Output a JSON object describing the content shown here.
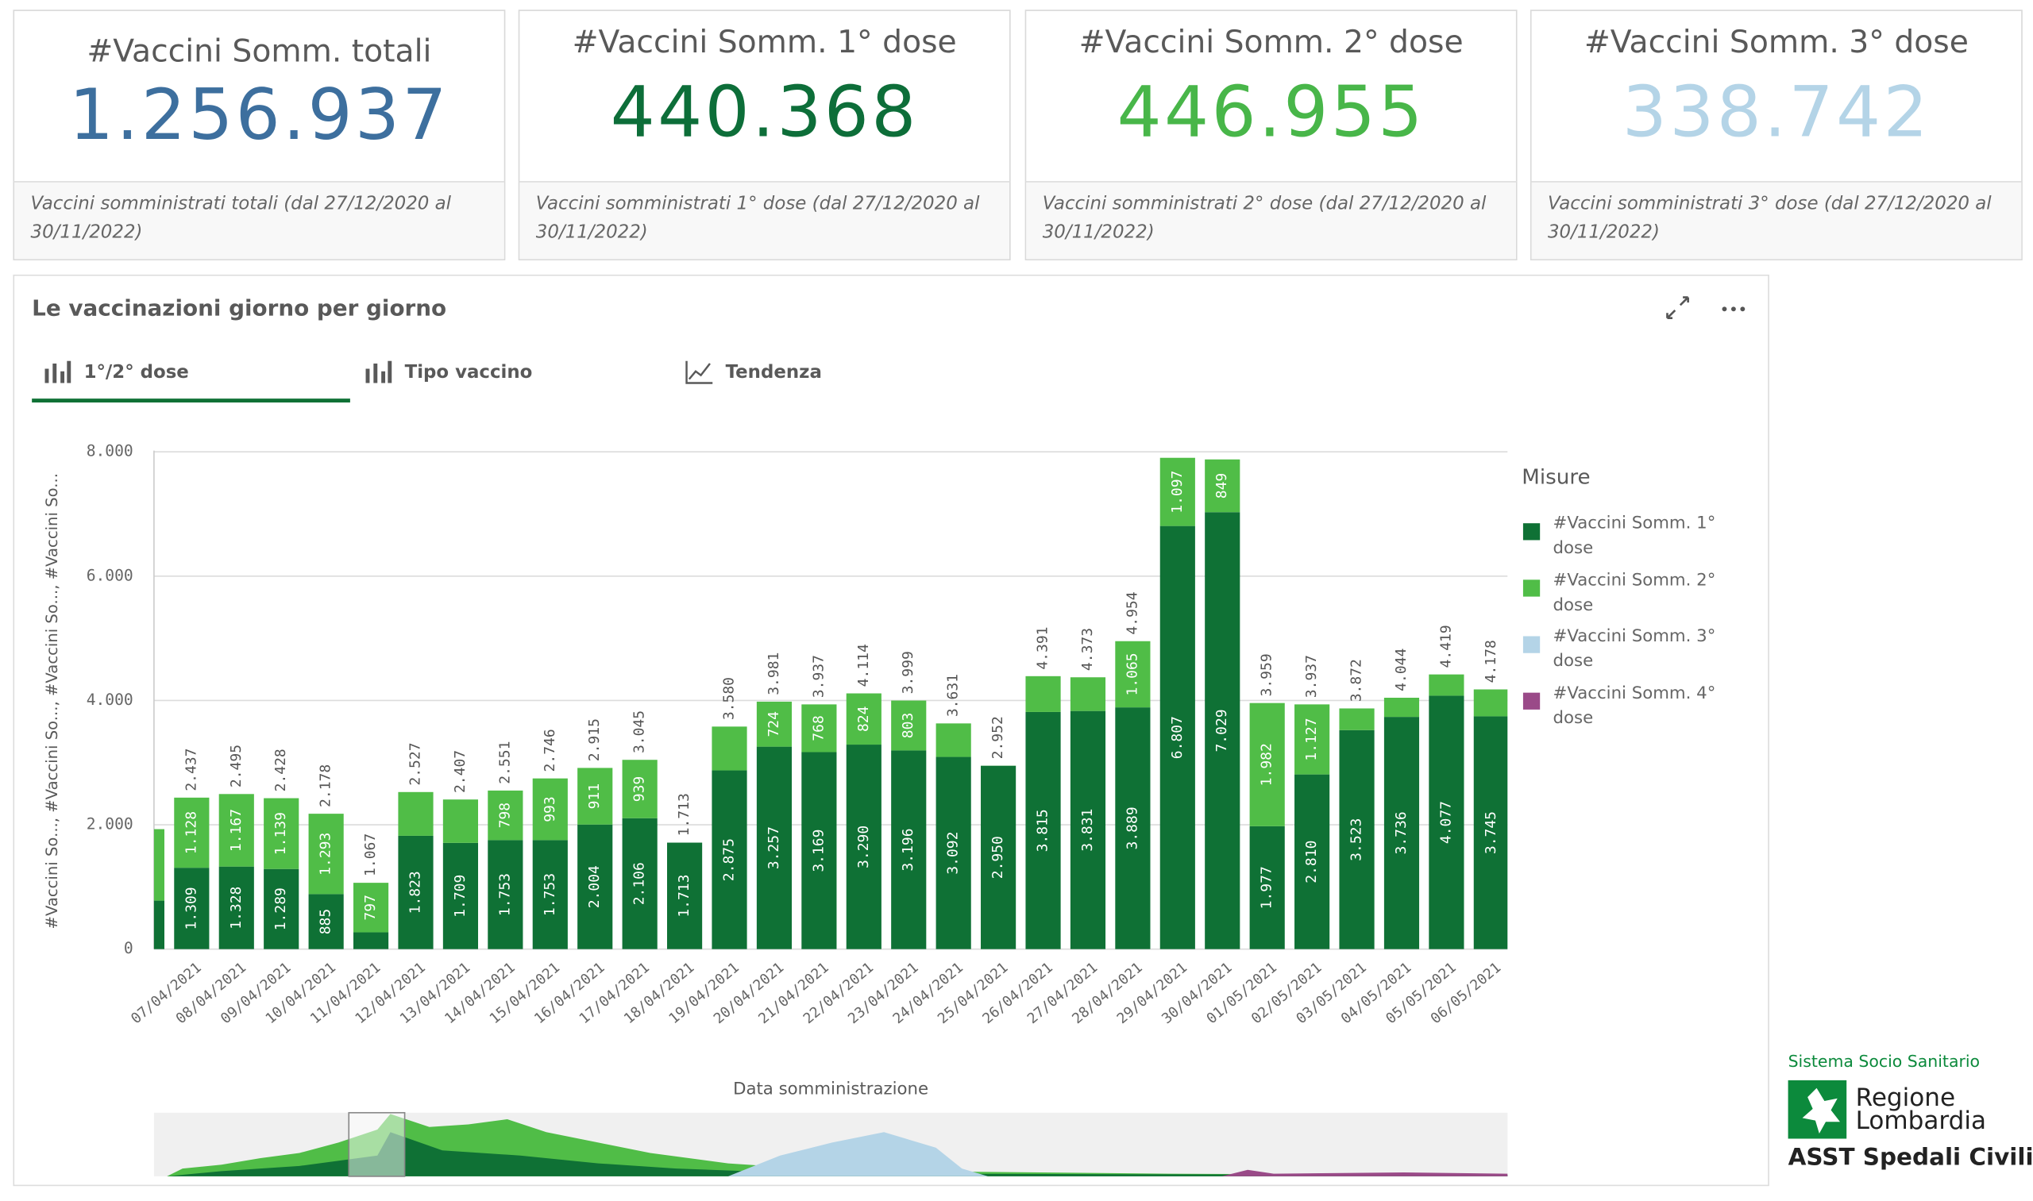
{
  "kpis": [
    {
      "title": "#Vaccini Somm. totali",
      "value": "1.256.937",
      "color": "#3d6f9e",
      "note": "Vaccini somministrati totali (dal 27/12/2020 al 30/11/2022)"
    },
    {
      "title": "#Vaccini Somm. 1° dose",
      "value": "440.368",
      "color": "#0d6e39",
      "note": "Vaccini somministrati 1° dose (dal 27/12/2020 al 30/11/2022)"
    },
    {
      "title": "#Vaccini Somm. 2° dose",
      "value": "446.955",
      "color": "#48b649",
      "note": "Vaccini somministrati 2° dose (dal 27/12/2020 al 30/11/2022)"
    },
    {
      "title": "#Vaccini Somm. 3° dose",
      "value": "338.742",
      "color": "#b4d4e7",
      "note": "Vaccini somministrati 3° dose (dal 27/12/2020 al 30/11/2022)"
    }
  ],
  "panel_title": "Le vaccinazioni giorno per giorno",
  "tabs": [
    "1°/2° dose",
    "Tipo vaccino",
    "Tendenza"
  ],
  "logo": {
    "network": "Sistema Socio Sanitario",
    "region_1": "Regione",
    "region_2": "Lombardia",
    "org": "ASST Spedali Civili"
  },
  "chart_data": {
    "type": "stacked_bar",
    "x_label": "Data somministrazione",
    "y_label": "#Vaccini So..., #Vaccini So..., #Vaccini So..., #Vaccini So...",
    "legend_title": "Misure",
    "categories": [
      null,
      "07/04/2021",
      "08/04/2021",
      "09/04/2021",
      "10/04/2021",
      "11/04/2021",
      "12/04/2021",
      "13/04/2021",
      "14/04/2021",
      "15/04/2021",
      "16/04/2021",
      "17/04/2021",
      "18/04/2021",
      "19/04/2021",
      "20/04/2021",
      "21/04/2021",
      "22/04/2021",
      "23/04/2021",
      "24/04/2021",
      "25/04/2021",
      "26/04/2021",
      "27/04/2021",
      "28/04/2021",
      "29/04/2021",
      "30/04/2021",
      "01/05/2021",
      "02/05/2021",
      "03/05/2021",
      "04/05/2021",
      "05/05/2021",
      "06/05/2021"
    ],
    "series": [
      {
        "name": "#Vaccini Somm. 1° dose",
        "color": "#0f7135",
        "values": [
          780,
          1309,
          1328,
          1289,
          885,
          270,
          1823,
          1709,
          1753,
          1753,
          2004,
          2106,
          1713,
          2875,
          3257,
          3169,
          3290,
          3196,
          3092,
          2950,
          3815,
          3831,
          3889,
          6807,
          7029,
          1977,
          2810,
          3523,
          3736,
          4077,
          3745
        ],
        "value_labels": [
          null,
          "1.309",
          "1.328",
          "1.289",
          "885",
          null,
          "1.823",
          "1.709",
          "1.753",
          "1.753",
          "2.004",
          "2.106",
          "1.713",
          "2.875",
          "3.257",
          "3.169",
          "3.290",
          "3.196",
          "3.092",
          "2.950",
          "3.815",
          "3.831",
          "3.889",
          "6.807",
          "7.029",
          "1.977",
          "2.810",
          "3.523",
          "3.736",
          "4.077",
          "3.745"
        ]
      },
      {
        "name": "#Vaccini Somm. 2° dose",
        "color": "#50bd47",
        "values": [
          1150,
          1128,
          1167,
          1139,
          1293,
          797,
          704,
          698,
          798,
          993,
          911,
          939,
          0,
          705,
          724,
          768,
          824,
          803,
          539,
          2,
          576,
          542,
          1065,
          1097,
          849,
          1982,
          1127,
          349,
          308,
          342,
          433
        ],
        "value_labels": [
          null,
          "1.128",
          "1.167",
          "1.139",
          "1.293",
          "797",
          null,
          null,
          "798",
          "993",
          "911",
          "939",
          null,
          null,
          "724",
          "768",
          "824",
          "803",
          null,
          null,
          null,
          null,
          "1.065",
          "1.097",
          "849",
          "1.982",
          "1.127",
          null,
          null,
          null,
          null
        ]
      },
      {
        "name": "#Vaccini Somm. 3° dose",
        "color": "#b4d4e7",
        "values": [
          null,
          null,
          null,
          null,
          null,
          null,
          null,
          null,
          null,
          null,
          null,
          null,
          null,
          null,
          null,
          null,
          null,
          null,
          null,
          null,
          null,
          null,
          null,
          null,
          null,
          null,
          null,
          null,
          null,
          null,
          null
        ]
      },
      {
        "name": "#Vaccini Somm. 4° dose",
        "color": "#9a4a88",
        "values": [
          null,
          null,
          null,
          null,
          null,
          null,
          null,
          null,
          null,
          null,
          null,
          null,
          null,
          null,
          null,
          null,
          null,
          null,
          null,
          null,
          null,
          null,
          null,
          null,
          null,
          null,
          null,
          null,
          null,
          null,
          null
        ]
      }
    ],
    "total_labels": [
      null,
      "2.437",
      "2.495",
      "2.428",
      "2.178",
      "1.067",
      "2.527",
      "2.407",
      "2.551",
      "2.746",
      "2.915",
      "3.045",
      "1.713",
      "3.580",
      "3.981",
      "3.937",
      "4.114",
      "3.999",
      "3.631",
      "2.952",
      "4.391",
      "4.373",
      "4.954",
      null,
      null,
      "3.959",
      "3.937",
      "3.872",
      "4.044",
      "4.419",
      "4.178"
    ],
    "ylim": [
      0,
      8000
    ],
    "yticks": [
      0,
      {
        "value": 2000,
        "label": "2.000"
      },
      {
        "value": 4000,
        "label": "4.000"
      },
      {
        "value": 6000,
        "label": "6.000"
      },
      {
        "value": 8000,
        "label": "8.000"
      }
    ],
    "grid": true
  }
}
